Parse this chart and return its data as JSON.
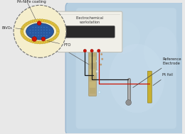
{
  "bg_color": "#e8e8e8",
  "workstation_label": "Electrochemical\nworkstation",
  "workstation_color": "#f0efe8",
  "workstation_border": "#c0c0b8",
  "display_color": "#2a2a2a",
  "water_color": "#b0cce0",
  "water_color2": "#c8dcea",
  "electrode_fto_color": "#c8b888",
  "electrode_active_color": "#b8a870",
  "pt_foil_color": "#c8b030",
  "ref_color": "#909090",
  "ref_bulb_color": "#b0b0b0",
  "wire_black": "#1a1a1a",
  "wire_red": "#cc1100",
  "red_tip": "#cc1100",
  "fto_label": "FTO",
  "bivo4_label": "BiVO₄",
  "coating_label": "PA-NiFe coating",
  "pt_foil_label": "Pt foil",
  "ref_electrode_label": "Reference\nElectrode",
  "circle_bg": "#f0dea0",
  "circle_inner": "#2858a0",
  "bead_color": "#e0c040",
  "bead_edge": "#b09820",
  "label_color": "#222222",
  "bubble_color": "#e8f4fc"
}
